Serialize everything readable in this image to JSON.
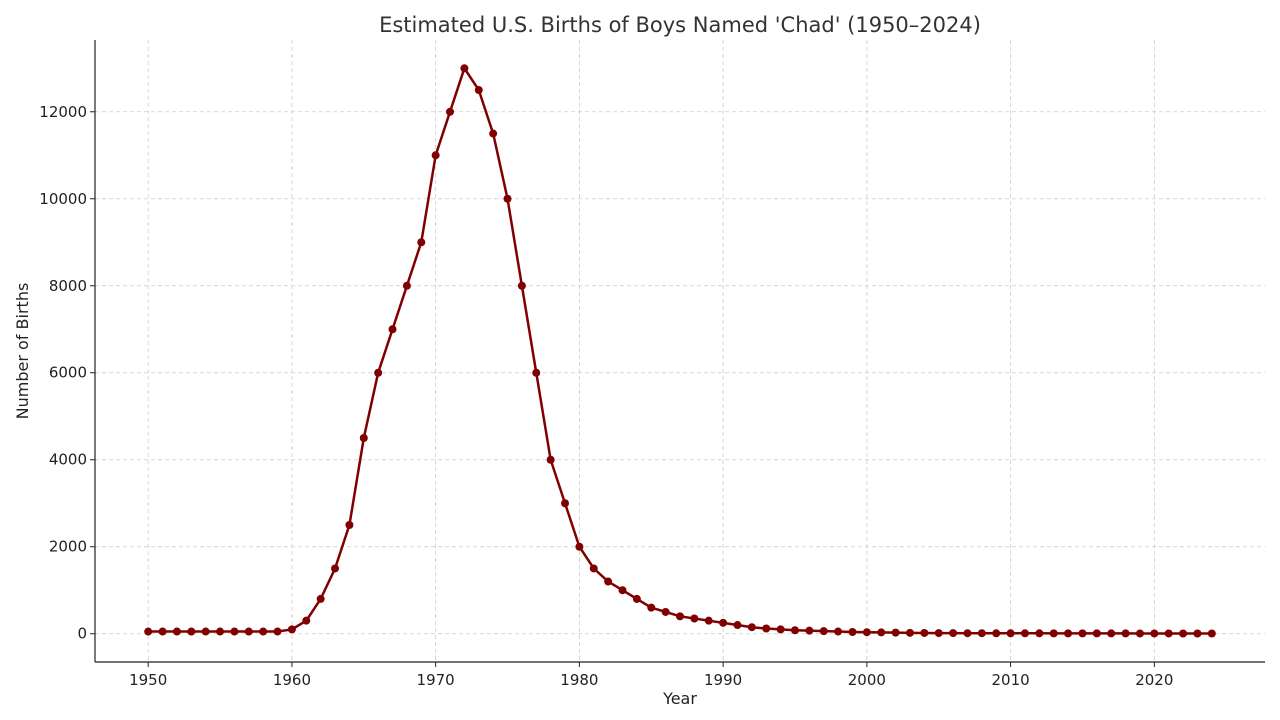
{
  "chart_data": {
    "type": "line",
    "title": "Estimated U.S. Births of Boys Named 'Chad' (1950–2024)",
    "xlabel": "Year",
    "ylabel": "Number of Births",
    "xlim": [
      1946.3,
      2027.7
    ],
    "ylim": [
      -650,
      13650
    ],
    "xticks": [
      1950,
      1960,
      1970,
      1980,
      1990,
      2000,
      2010,
      2020
    ],
    "yticks": [
      0,
      2000,
      4000,
      6000,
      8000,
      10000,
      12000
    ],
    "grid": true,
    "color": "#800000",
    "x": [
      1950,
      1951,
      1952,
      1953,
      1954,
      1955,
      1956,
      1957,
      1958,
      1959,
      1960,
      1961,
      1962,
      1963,
      1964,
      1965,
      1966,
      1967,
      1968,
      1969,
      1970,
      1971,
      1972,
      1973,
      1974,
      1975,
      1976,
      1977,
      1978,
      1979,
      1980,
      1981,
      1982,
      1983,
      1984,
      1985,
      1986,
      1987,
      1988,
      1989,
      1990,
      1991,
      1992,
      1993,
      1994,
      1995,
      1996,
      1997,
      1998,
      1999,
      2000,
      2001,
      2002,
      2003,
      2004,
      2005,
      2006,
      2007,
      2008,
      2009,
      2010,
      2011,
      2012,
      2013,
      2014,
      2015,
      2016,
      2017,
      2018,
      2019,
      2020,
      2021,
      2022,
      2023,
      2024
    ],
    "y": [
      50,
      50,
      50,
      50,
      50,
      50,
      50,
      50,
      50,
      50,
      100,
      300,
      800,
      1500,
      2500,
      4500,
      6000,
      7000,
      8000,
      9000,
      11000,
      12000,
      13000,
      12500,
      11500,
      10000,
      8000,
      6000,
      4000,
      3000,
      2000,
      1500,
      1200,
      1000,
      800,
      600,
      500,
      400,
      350,
      300,
      250,
      200,
      150,
      120,
      100,
      80,
      70,
      60,
      50,
      40,
      35,
      30,
      25,
      20,
      18,
      15,
      15,
      12,
      12,
      10,
      10,
      10,
      10,
      8,
      8,
      8,
      8,
      7,
      7,
      6,
      6,
      6,
      5,
      5,
      5
    ]
  }
}
